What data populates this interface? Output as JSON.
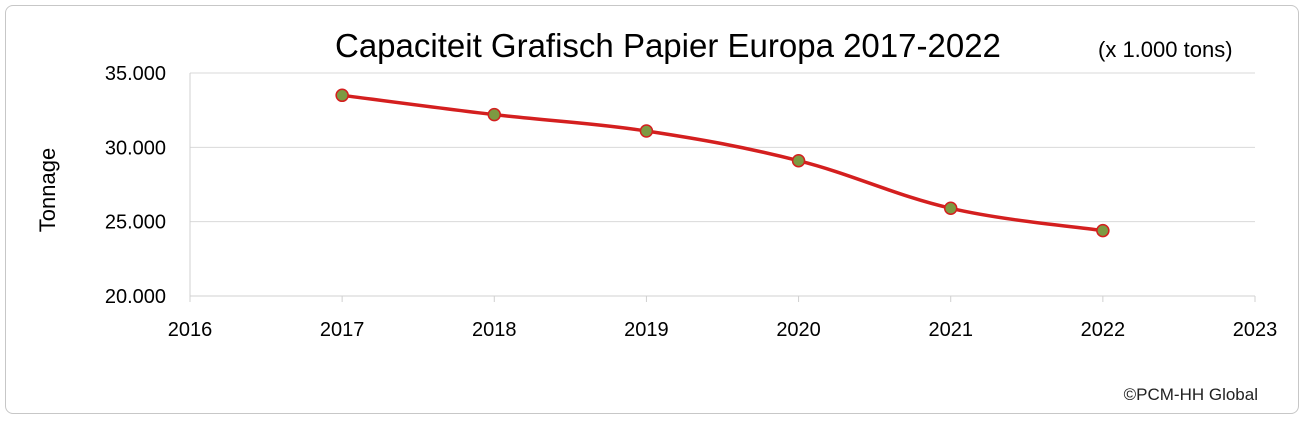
{
  "chart_data": {
    "type": "line",
    "title": "Capaciteit Grafisch Papier Europa 2017-2022",
    "subtitle": "(x 1.000 tons)",
    "xlabel": "",
    "ylabel": "Tonnage",
    "xlim": [
      2016,
      2023
    ],
    "ylim": [
      20000,
      35000
    ],
    "x_ticks": [
      2016,
      2017,
      2018,
      2019,
      2020,
      2021,
      2022,
      2023
    ],
    "y_ticks": [
      20000,
      25000,
      30000,
      35000
    ],
    "y_tick_labels": [
      "20.000",
      "25.000",
      "30.000",
      "35.000"
    ],
    "grid": true,
    "legend": "none",
    "series": [
      {
        "x": [
          2017,
          2018,
          2019,
          2020,
          2021,
          2022
        ],
        "values": [
          33500,
          32200,
          31100,
          29100,
          25900,
          24400
        ],
        "line_color": "#d41f1f",
        "marker_color": "#7d9a42"
      }
    ]
  },
  "credit": "©PCM-HH Global"
}
